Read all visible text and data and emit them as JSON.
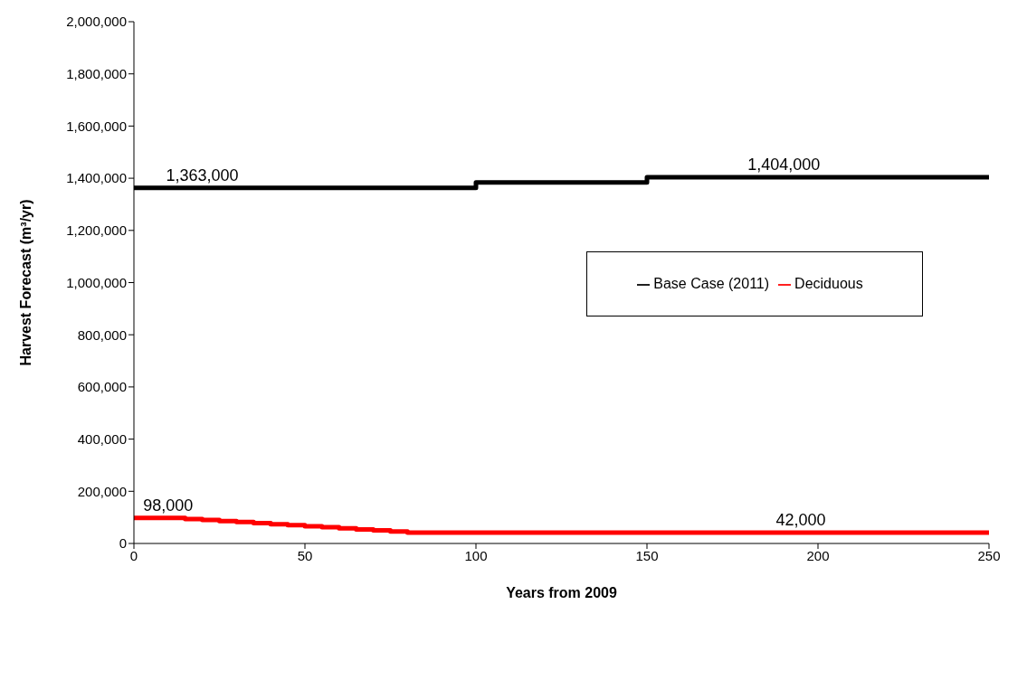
{
  "chart_data": {
    "type": "step",
    "xlabel": "Years from 2009",
    "ylabel": "Harvest Forecast (m³/yr)",
    "xlim": [
      0,
      250
    ],
    "xticks": [
      0,
      50,
      100,
      150,
      200,
      250
    ],
    "ylim": [
      0,
      2000000
    ],
    "yticks": [
      0,
      {
        "value": 200000,
        "label": "200,000"
      },
      {
        "value": 400000,
        "label": "400,000"
      },
      {
        "value": 600000,
        "label": "600,000"
      },
      {
        "value": 800000,
        "label": "800,000"
      },
      {
        "value": 1000000,
        "label": "1,000,000"
      },
      {
        "value": 1200000,
        "label": "1,200,000"
      },
      {
        "value": 1400000,
        "label": "1,400,000"
      },
      {
        "value": 1600000,
        "label": "1,600,000"
      },
      {
        "value": 1800000,
        "label": "1,800,000"
      },
      {
        "value": 2000000,
        "label": "2,000,000"
      }
    ],
    "series": [
      {
        "name": "Base Case (2011)",
        "color": "#000000",
        "x": [
          0,
          100,
          150,
          250
        ],
        "values": [
          1363000,
          1384000,
          1404000,
          1404000
        ]
      },
      {
        "name": "Deciduous",
        "color": "#ff0000",
        "x": [
          0,
          15,
          20,
          25,
          30,
          35,
          40,
          45,
          50,
          55,
          60,
          65,
          70,
          75,
          80,
          250
        ],
        "values": [
          98000,
          94000,
          90000,
          86000,
          82000,
          78000,
          74000,
          70000,
          66000,
          62000,
          58000,
          54000,
          50000,
          46000,
          42000,
          42000
        ]
      }
    ],
    "annotations": [
      {
        "text": "1,363,000",
        "x": 20,
        "y": 1363000
      },
      {
        "text": "1,404,000",
        "x": 190,
        "y": 1404000
      },
      {
        "text": "98,000",
        "x": 10,
        "y": 98000
      },
      {
        "text": "42,000",
        "x": 195,
        "y": 42000
      }
    ],
    "legend": "right",
    "grid": false,
    "marker": "none",
    "line_style": "solid"
  }
}
